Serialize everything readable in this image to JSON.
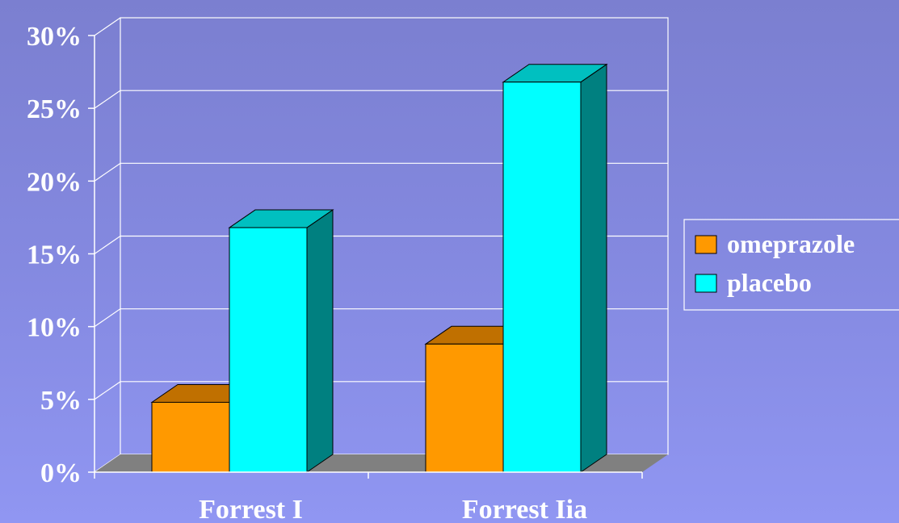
{
  "chart_data": {
    "type": "bar",
    "style": "3d-clustered",
    "categories": [
      "Forrest I",
      "Forrest Iia"
    ],
    "series": [
      {
        "name": "omeprazole",
        "values": [
          4.8,
          8.8
        ],
        "color": "#ff9900",
        "top_color": "#c07000",
        "side_color": "#a05a00"
      },
      {
        "name": "placebo",
        "values": [
          16.8,
          26.8
        ],
        "color": "#00ffff",
        "top_color": "#00c0c0",
        "side_color": "#008080"
      }
    ],
    "y_ticks": [
      "0%",
      "5%",
      "10%",
      "15%",
      "20%",
      "25%",
      "30%"
    ],
    "ylim": [
      0,
      30
    ],
    "grid": true,
    "floor_color": "#808080",
    "legend_position": "right"
  }
}
